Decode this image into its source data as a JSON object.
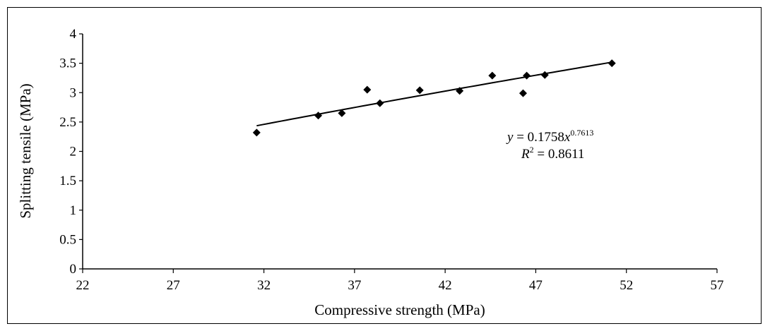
{
  "chart_data": {
    "type": "scatter",
    "title": "",
    "xlabel": "Compressive strength (MPa)",
    "ylabel": "Splitting tensile (MPa)",
    "xlim": [
      22,
      57
    ],
    "ylim": [
      0,
      4
    ],
    "x_ticks": [
      22,
      27,
      32,
      37,
      42,
      47,
      52,
      57
    ],
    "y_ticks": [
      0,
      0.5,
      1,
      1.5,
      2,
      2.5,
      3,
      3.5,
      4
    ],
    "grid": false,
    "series": [
      {
        "name": "Splitting tensile",
        "marker": "diamond",
        "color": "#000000",
        "x": [
          31.6,
          35.0,
          36.3,
          37.7,
          38.4,
          40.6,
          42.8,
          44.6,
          46.3,
          46.5,
          47.5,
          51.2
        ],
        "y": [
          2.32,
          2.61,
          2.65,
          3.05,
          2.82,
          3.04,
          3.03,
          3.29,
          2.99,
          3.29,
          3.3,
          3.5
        ]
      }
    ],
    "trendline": {
      "type": "power",
      "coefficient": 0.1758,
      "exponent": 0.7613,
      "x_range": [
        31.6,
        51.2
      ],
      "color": "#000000"
    },
    "annotation": {
      "eq_y": "y",
      "eq_mid": " = 0.1758",
      "eq_x": "x",
      "eq_exp": "0.7613",
      "r2_R": "R",
      "r2_sup": "2",
      "r2_rest": " = 0.8611"
    }
  }
}
